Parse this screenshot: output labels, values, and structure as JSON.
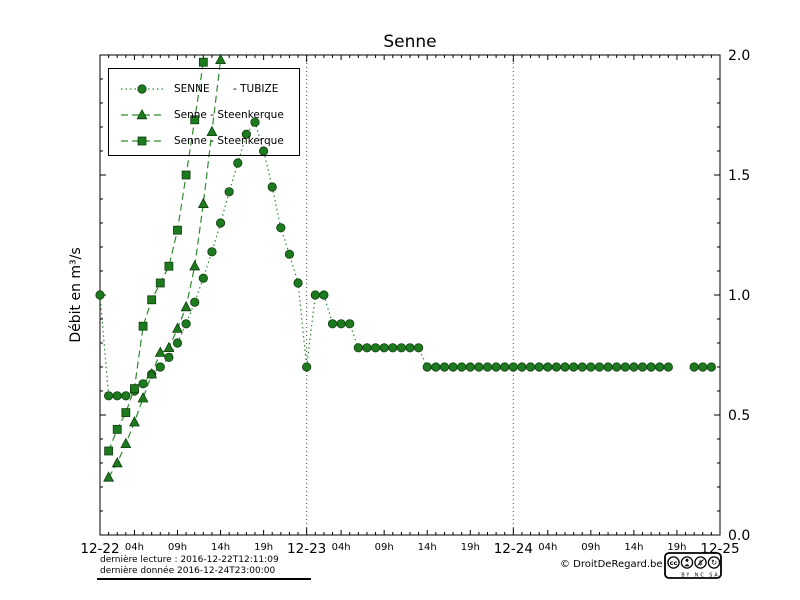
{
  "title": "Senne",
  "axes": {
    "y_label": "Débit en m³/s",
    "y_ticks": [
      "0.0",
      "0.5",
      "1.0",
      "1.5",
      "2.0"
    ],
    "y_min": 0,
    "y_max": 2,
    "x_day_labels": [
      "12-22",
      "12-23",
      "12-24",
      "12-25"
    ],
    "x_hour_labels": [
      "04h",
      "09h",
      "14h",
      "19h"
    ],
    "x_hour_positions": [
      4,
      9,
      14,
      19
    ],
    "hours_total": 72
  },
  "colors": {
    "series_line": "#2e8b2e",
    "marker_fill": "#1e7a1e",
    "marker_edge": "#0d3f0d",
    "grid": "#444444",
    "background": "#ffffff"
  },
  "legend": {
    "items": [
      {
        "label": "SENNE       - TUBIZE",
        "marker": "circle",
        "line": "dotted"
      },
      {
        "label": "Senne - Steenkerque",
        "marker": "triangle",
        "line": "dashed"
      },
      {
        "label": "Senne - Steenkerque",
        "marker": "square",
        "line": "dashed"
      }
    ]
  },
  "chart_data": {
    "type": "line",
    "title": "Senne",
    "ylabel": "Débit en m³/s",
    "ylim": [
      0,
      2
    ],
    "x_unit": "hours since 2016-12-22T00:00",
    "x_step_hours": 1,
    "grid": "dotted vertical lines at day boundaries",
    "legend_position": "upper-left",
    "series": [
      {
        "name": "SENNE - TUBIZE",
        "marker": "circle",
        "line": "dotted",
        "start_hour": 0,
        "values": [
          1.0,
          0.58,
          0.58,
          0.58,
          0.6,
          0.63,
          0.67,
          0.7,
          0.74,
          0.8,
          0.88,
          0.97,
          1.07,
          1.18,
          1.3,
          1.43,
          1.55,
          1.67,
          1.72,
          1.6,
          1.45,
          1.28,
          1.17,
          1.05,
          0.7,
          1.0,
          1.0,
          0.88,
          0.88,
          0.88,
          0.78,
          0.78,
          0.78,
          0.78,
          0.78,
          0.78,
          0.78,
          0.78,
          0.7,
          0.7,
          0.7,
          0.7,
          0.7,
          0.7,
          0.7,
          0.7,
          0.7,
          0.7,
          0.7,
          0.7,
          0.7,
          0.7,
          0.7,
          0.7,
          0.7,
          0.7,
          0.7,
          0.7,
          0.7,
          0.7,
          0.7,
          0.7,
          0.7,
          0.7,
          0.7,
          0.7,
          0.7,
          null,
          null,
          0.7,
          0.7,
          0.7
        ]
      },
      {
        "name": "Senne - Steenkerque",
        "marker": "triangle",
        "line": "dashed",
        "start_hour": 1,
        "values": [
          0.24,
          0.3,
          0.38,
          0.47,
          0.57,
          0.67,
          0.76,
          0.78,
          0.86,
          0.95,
          1.12,
          1.38,
          1.68,
          1.98
        ]
      },
      {
        "name": "Senne - Steenkerque",
        "marker": "square",
        "line": "dashed",
        "start_hour": 1,
        "values": [
          0.35,
          0.44,
          0.51,
          0.61,
          0.87,
          0.98,
          1.05,
          1.12,
          1.27,
          1.5,
          1.73,
          1.97
        ]
      }
    ]
  },
  "footer": {
    "last_reading": "dernière lecture : 2016-12-22T12:11:09",
    "last_data": "dernière donnée  2016-12-24T23:00:00",
    "copyright": "© DroitDeRegard.be",
    "cc_caption": "BY NC SA"
  }
}
